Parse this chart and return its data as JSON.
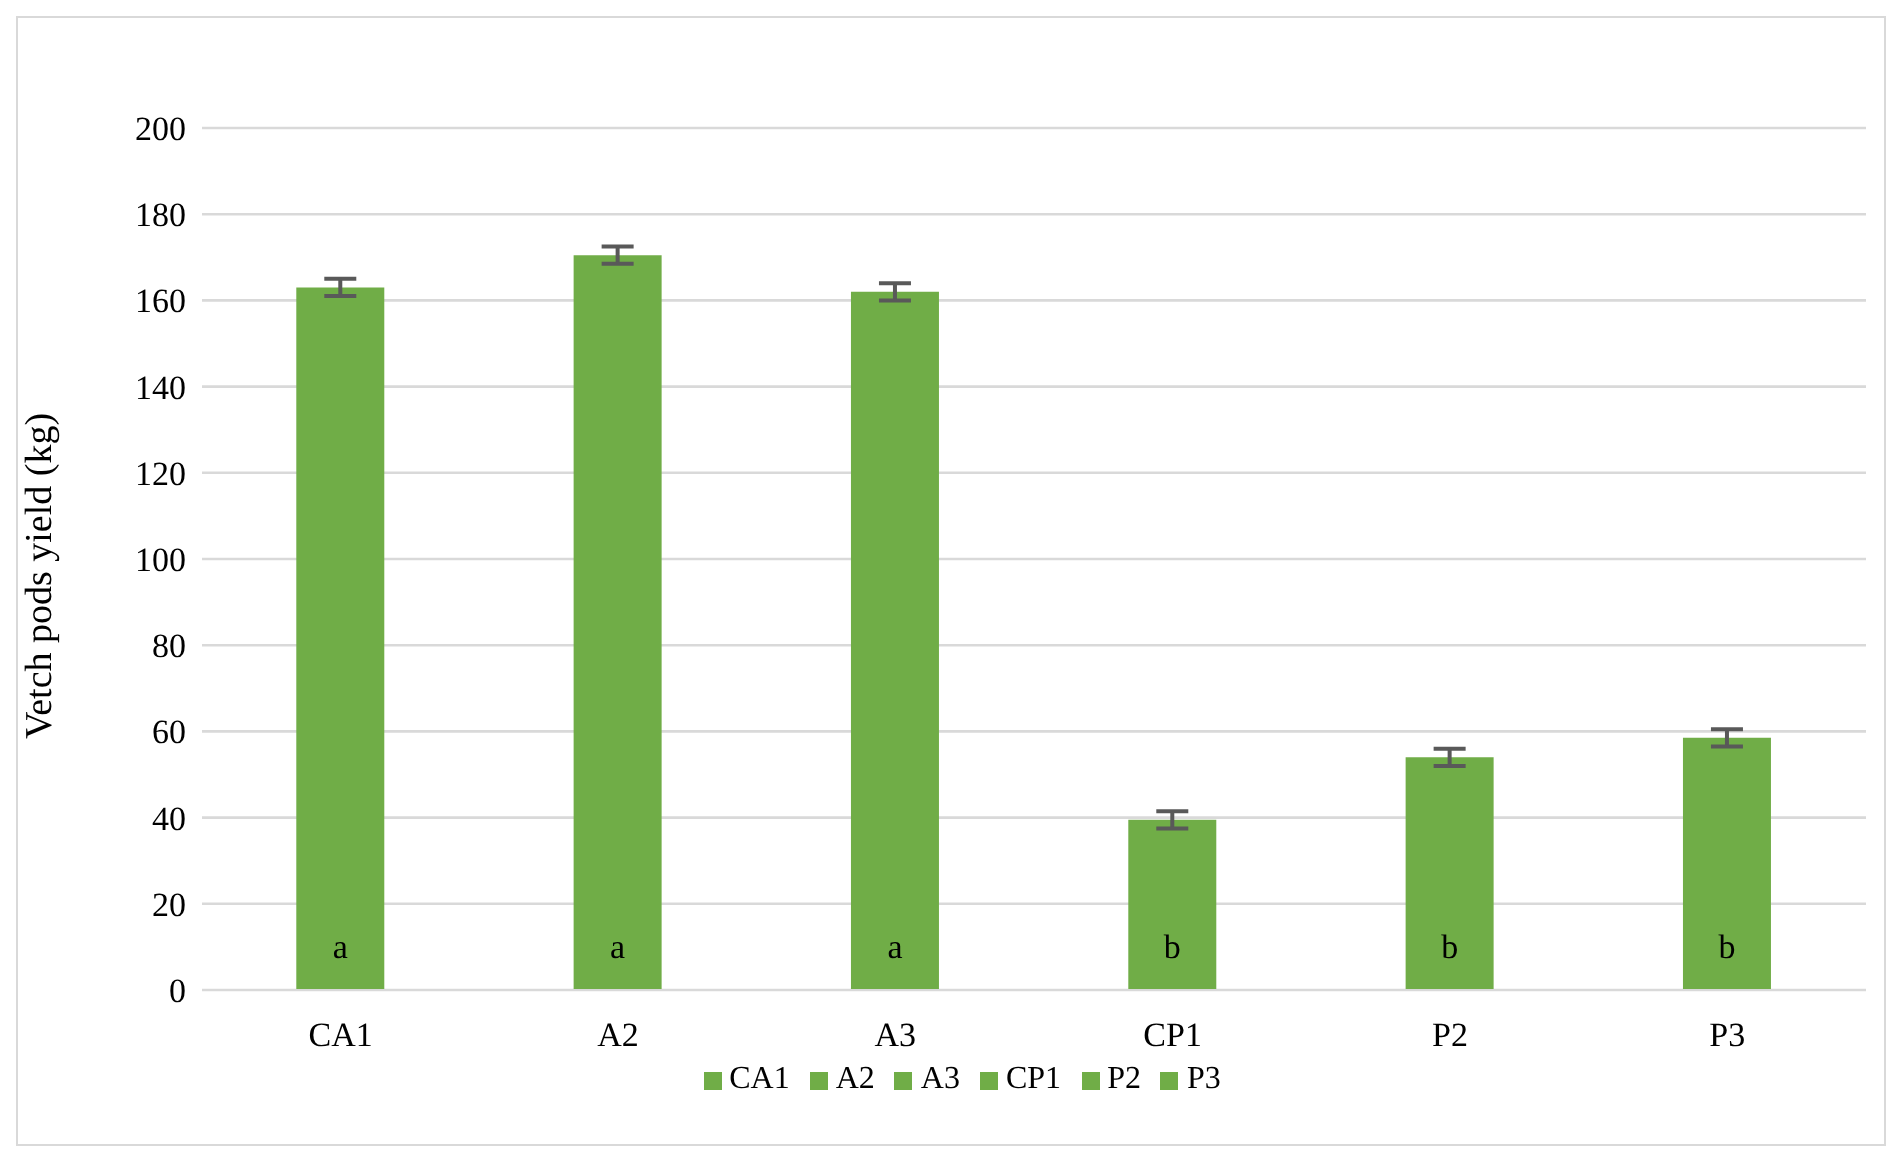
{
  "chart_data": {
    "type": "bar",
    "ylabel": "Vetch pods yield (kg)",
    "categories": [
      "CA1",
      "A2",
      "A3",
      "CP1",
      "P2",
      "P3"
    ],
    "stacked": true,
    "series": [
      {
        "name": "CA1",
        "color": "#70ad47",
        "values": [
          163,
          null,
          null,
          null,
          null,
          null
        ],
        "errors": [
          2,
          null,
          null,
          null,
          null,
          null
        ]
      },
      {
        "name": "A2",
        "color": "#70ad47",
        "values": [
          null,
          170.5,
          null,
          null,
          null,
          null
        ],
        "errors": [
          null,
          2,
          null,
          null,
          null,
          null
        ]
      },
      {
        "name": "A3",
        "color": "#70ad47",
        "values": [
          null,
          null,
          162,
          null,
          null,
          null
        ],
        "errors": [
          null,
          null,
          2,
          null,
          null,
          null
        ]
      },
      {
        "name": "CP1",
        "color": "#70ad47",
        "values": [
          null,
          null,
          null,
          39.5,
          null,
          null
        ],
        "errors": [
          null,
          null,
          null,
          2,
          null,
          null
        ]
      },
      {
        "name": "P2",
        "color": "#70ad47",
        "values": [
          null,
          null,
          null,
          null,
          54,
          null
        ],
        "errors": [
          null,
          null,
          null,
          null,
          2,
          null
        ]
      },
      {
        "name": "P3",
        "color": "#70ad47",
        "values": [
          null,
          null,
          null,
          null,
          null,
          58.5
        ],
        "errors": [
          null,
          null,
          null,
          null,
          null,
          2
        ]
      }
    ],
    "ylim": [
      0,
      200
    ],
    "yticks": [
      0,
      20,
      40,
      60,
      80,
      100,
      120,
      140,
      160,
      180,
      200
    ],
    "grid": "y",
    "legend": "bottom",
    "annotations": [
      "a",
      "a",
      "a",
      "b",
      "b",
      "b"
    ]
  }
}
